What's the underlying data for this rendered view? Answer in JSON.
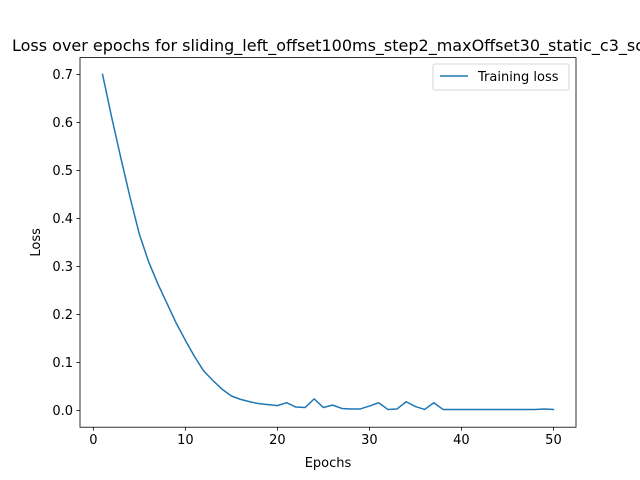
{
  "chart_data": {
    "type": "line",
    "title": "Loss over epochs for sliding_left_offset100ms_step2_maxOffset30_static_c3_sc",
    "xlabel": "Epochs",
    "ylabel": "Loss",
    "xlim": [
      -1.45,
      52.45
    ],
    "ylim": [
      -0.035,
      0.735
    ],
    "xticks": [
      0,
      10,
      20,
      30,
      40,
      50
    ],
    "xtick_labels": [
      "0",
      "10",
      "20",
      "30",
      "40",
      "50"
    ],
    "yticks": [
      0.0,
      0.1,
      0.2,
      0.3,
      0.4,
      0.5,
      0.6,
      0.7
    ],
    "ytick_labels": [
      "0.0",
      "0.1",
      "0.2",
      "0.3",
      "0.4",
      "0.5",
      "0.6",
      "0.7"
    ],
    "grid": false,
    "legend_position": "upper right",
    "series": [
      {
        "name": "Training loss",
        "color": "#1f77b4",
        "x": [
          1,
          2,
          3,
          4,
          5,
          6,
          7,
          8,
          9,
          10,
          11,
          12,
          13,
          14,
          15,
          16,
          17,
          18,
          19,
          20,
          21,
          22,
          23,
          24,
          25,
          26,
          27,
          28,
          29,
          30,
          31,
          32,
          33,
          34,
          35,
          36,
          37,
          38,
          39,
          40,
          41,
          42,
          43,
          44,
          45,
          46,
          47,
          48,
          49,
          50
        ],
        "y": [
          0.7,
          0.61,
          0.525,
          0.443,
          0.367,
          0.31,
          0.264,
          0.223,
          0.182,
          0.146,
          0.112,
          0.082,
          0.062,
          0.044,
          0.03,
          0.023,
          0.018,
          0.014,
          0.012,
          0.01,
          0.016,
          0.007,
          0.006,
          0.024,
          0.006,
          0.011,
          0.004,
          0.003,
          0.003,
          0.009,
          0.016,
          0.002,
          0.003,
          0.018,
          0.008,
          0.002,
          0.016,
          0.002,
          0.002,
          0.002,
          0.002,
          0.002,
          0.002,
          0.002,
          0.002,
          0.002,
          0.002,
          0.002,
          0.003,
          0.002
        ]
      }
    ]
  }
}
